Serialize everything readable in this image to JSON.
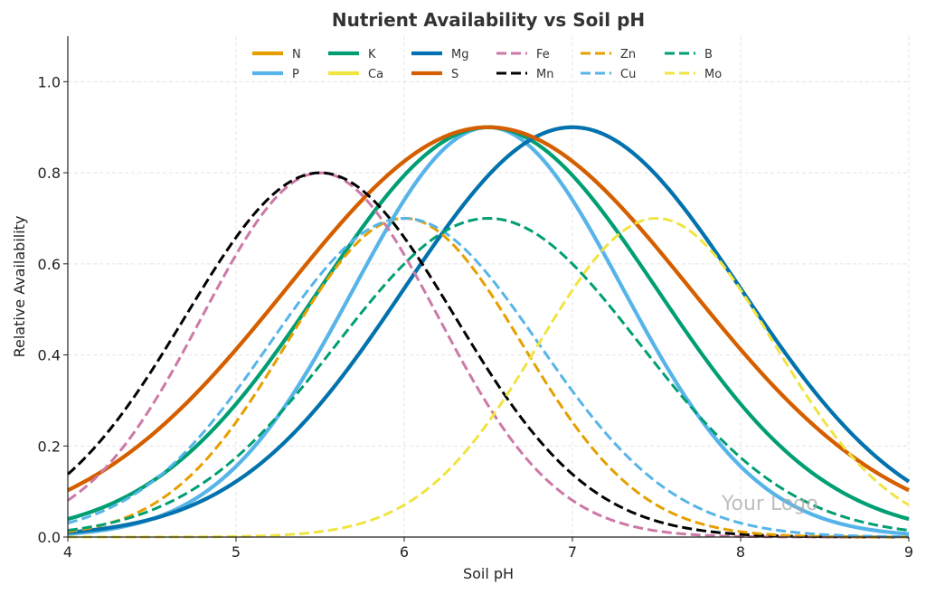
{
  "chart_data": {
    "type": "line",
    "title": "Nutrient Availability vs Soil pH",
    "xlabel": "Soil pH",
    "ylabel": "Relative Availability",
    "xlim": [
      4,
      9
    ],
    "ylim": [
      0,
      1.1
    ],
    "xticks": [
      4,
      5,
      6,
      7,
      8,
      9
    ],
    "xtick_labels": [
      "4",
      "5",
      "6",
      "7",
      "8",
      "9"
    ],
    "yticks": [
      0.0,
      0.2,
      0.4,
      0.6,
      0.8,
      1.0
    ],
    "ytick_labels": [
      "0.0",
      "0.2",
      "0.4",
      "0.6",
      "0.8",
      "1.0"
    ],
    "grid": true,
    "legend_position": "top-center",
    "legend_columns": 6,
    "curve_model": "gaussian: peak * exp(-(pH - optimum)^2 / (2 * width^2))",
    "series": [
      {
        "name": "N",
        "color": "#E69F00",
        "style": "solid",
        "optimum_pH": 6.5,
        "peak": 0.9,
        "width": 1.2
      },
      {
        "name": "P",
        "color": "#56B4E9",
        "style": "solid",
        "optimum_pH": 6.5,
        "peak": 0.9,
        "width": 0.8
      },
      {
        "name": "K",
        "color": "#009E73",
        "style": "solid",
        "optimum_pH": 6.5,
        "peak": 0.9,
        "width": 1.0
      },
      {
        "name": "Ca",
        "color": "#F0E442",
        "style": "solid",
        "optimum_pH": 7.0,
        "peak": 0.9,
        "width": 1.0
      },
      {
        "name": "Mg",
        "color": "#0072B2",
        "style": "solid",
        "optimum_pH": 7.0,
        "peak": 0.9,
        "width": 1.0
      },
      {
        "name": "S",
        "color": "#D55E00",
        "style": "solid",
        "optimum_pH": 6.5,
        "peak": 0.9,
        "width": 1.2
      },
      {
        "name": "Fe",
        "color": "#CC79A7",
        "style": "dashed",
        "optimum_pH": 5.5,
        "peak": 0.8,
        "width": 0.7
      },
      {
        "name": "Mn",
        "color": "#000000",
        "style": "dashed",
        "optimum_pH": 5.5,
        "peak": 0.8,
        "width": 0.8
      },
      {
        "name": "Zn",
        "color": "#E69F00",
        "style": "dashed",
        "optimum_pH": 6.0,
        "peak": 0.7,
        "width": 0.7
      },
      {
        "name": "Cu",
        "color": "#56B4E9",
        "style": "dashed",
        "optimum_pH": 6.0,
        "peak": 0.7,
        "width": 0.8
      },
      {
        "name": "B",
        "color": "#009E73",
        "style": "dashed",
        "optimum_pH": 6.5,
        "peak": 0.7,
        "width": 0.9
      },
      {
        "name": "Mo",
        "color": "#F0E442",
        "style": "dashed",
        "optimum_pH": 7.5,
        "peak": 0.7,
        "width": 0.7
      }
    ],
    "watermark": "Your Logo"
  }
}
